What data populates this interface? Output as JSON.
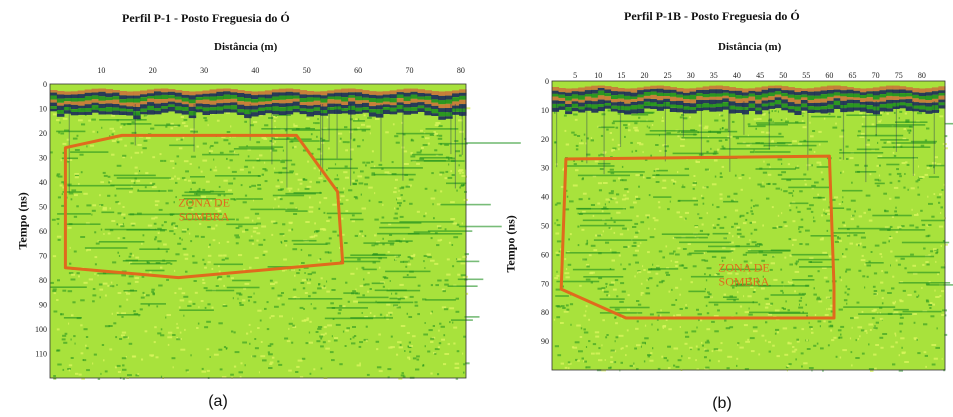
{
  "chart_data": [
    {
      "id": "a",
      "type": "heatmap",
      "title": "Perfil P-1  - Posto Freguesia do Ó",
      "xlabel": "Distância  (m)",
      "ylabel": "Tempo  (ns)",
      "xlim": [
        0,
        81
      ],
      "ylim": [
        0,
        120
      ],
      "x_ticks": [
        10,
        20,
        30,
        40,
        50,
        60,
        70,
        80
      ],
      "y_ticks": [
        0,
        10,
        20,
        30,
        40,
        50,
        60,
        70,
        80,
        90,
        100,
        110
      ],
      "y_tick_labels": [
        "0",
        "10",
        "20",
        "30",
        "40",
        "50",
        "60",
        "70",
        "80",
        "90",
        "100",
        "110"
      ],
      "zone_label": [
        "ZONA DE",
        "SOMBRA"
      ],
      "zone_polygon": [
        [
          3,
          26
        ],
        [
          14,
          21
        ],
        [
          48,
          21
        ],
        [
          56,
          44
        ],
        [
          57,
          73
        ],
        [
          25,
          79
        ],
        [
          3,
          75
        ]
      ],
      "caption": "(a)"
    },
    {
      "id": "b",
      "type": "heatmap",
      "title": "Perfil P-1B  - Posto Freguesia do Ó",
      "xlabel": "Distância  (m)",
      "ylabel": "Tempo  (ns)",
      "xlim": [
        0,
        85
      ],
      "ylim": [
        0,
        100
      ],
      "x_ticks": [
        5,
        10,
        15,
        20,
        25,
        30,
        35,
        40,
        45,
        50,
        55,
        60,
        65,
        70,
        75,
        80
      ],
      "y_ticks": [
        0,
        10,
        20,
        30,
        40,
        50,
        60,
        70,
        80,
        90
      ],
      "y_tick_labels": [
        "0",
        "10",
        "20",
        "30",
        "40",
        "50",
        "60",
        "70",
        "80",
        "90"
      ],
      "zone_label": [
        "ZONA DE",
        "SOMBRA"
      ],
      "zone_polygon": [
        [
          3,
          27
        ],
        [
          60,
          26
        ],
        [
          61,
          71
        ],
        [
          61,
          82
        ],
        [
          16,
          82
        ],
        [
          2,
          72
        ]
      ],
      "caption": "(b)"
    }
  ],
  "colors": {
    "background_green": "#a8e23c",
    "light_green": "#d8f55c",
    "dark_green": "#1e8f1e",
    "band_orange": "#c9753a",
    "band_navy": "#1a2a5a",
    "zone_outline": "#e06a1d"
  }
}
